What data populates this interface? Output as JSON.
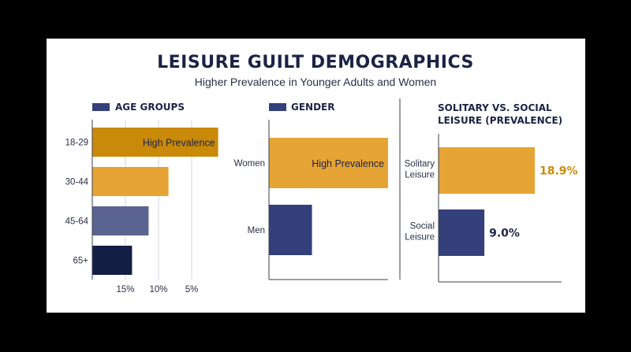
{
  "title": "LEISURE GUILT DEMOGRAPHICS",
  "subtitle": "Higher Prevalence in Younger Adults and Women",
  "colors": {
    "dark_gold": "#c98a0a",
    "gold": "#e5a433",
    "slate": "#5b6390",
    "navy_dark": "#121e44",
    "navy": "#34407a"
  },
  "chart_data": [
    {
      "type": "bar",
      "title": "AGE GROUPS",
      "orientation": "horizontal",
      "categories": [
        "18-29",
        "30-44",
        "45-64",
        "65+"
      ],
      "values": [
        19,
        11.5,
        8.5,
        6
      ],
      "bar_colors": [
        "#c98a0a",
        "#e5a433",
        "#5b6390",
        "#121e44"
      ],
      "annotations": [
        {
          "category": "18-29",
          "text": "High Prevalence"
        }
      ],
      "x_ticks": [
        "15%",
        "10%",
        "5%"
      ],
      "x_tick_values": [
        15,
        10,
        5
      ],
      "xlim": [
        20,
        0
      ],
      "grid": true
    },
    {
      "type": "bar",
      "title": "GENDER",
      "orientation": "horizontal",
      "categories": [
        "Women",
        "Men"
      ],
      "values": [
        18,
        6.5
      ],
      "bar_colors": [
        "#e5a433",
        "#34407a"
      ],
      "annotations": [
        {
          "category": "Women",
          "text": "High Prevalence"
        }
      ],
      "xlim": [
        0,
        18
      ]
    },
    {
      "type": "bar",
      "title": "SOLITARY VS. SOCIAL LEISURE (PREVALENCE)",
      "title_lines": [
        "SOLITARY VS. SOCIAL",
        "LEISURE (PREVALENCE)"
      ],
      "orientation": "horizontal",
      "categories": [
        "Solitary Leisure",
        "Social Leisure"
      ],
      "category_lines": [
        [
          "Solitary",
          "Leisure"
        ],
        [
          "Social",
          "Leisure"
        ]
      ],
      "values": [
        18.9,
        9.0
      ],
      "value_labels": [
        "18.9%",
        "9.0%"
      ],
      "value_label_colors": [
        "#c98a0a",
        "#1b2345"
      ],
      "bar_colors": [
        "#e5a433",
        "#34407a"
      ],
      "xlim": [
        0,
        18.9
      ]
    }
  ]
}
